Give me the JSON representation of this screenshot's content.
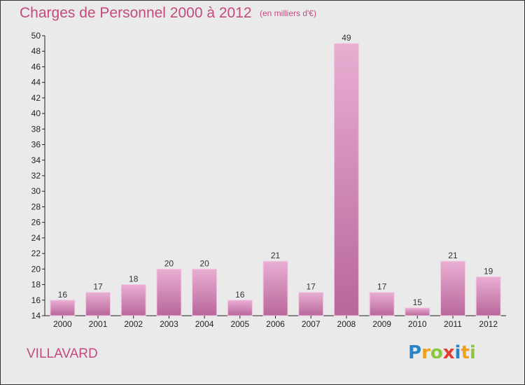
{
  "header": {
    "title": "Charges de Personnel 2000 à 2012",
    "subtitle": "(en milliers d'€)"
  },
  "footer": {
    "place": "VILLAVARD",
    "logo": {
      "letters": [
        "P",
        "r",
        "o",
        "x",
        "i",
        "t",
        "i"
      ],
      "colors": [
        "#2a84c9",
        "#f0a11c",
        "#8cc63f",
        "#e63c2f",
        "#2a84c9",
        "#f0a11c",
        "#8cc63f"
      ]
    }
  },
  "chart_data": {
    "type": "bar",
    "title": "Charges de Personnel 2000 à 2012",
    "subtitle": "(en milliers d'€)",
    "categories": [
      "2000",
      "2001",
      "2002",
      "2003",
      "2004",
      "2005",
      "2006",
      "2007",
      "2008",
      "2009",
      "2010",
      "2011",
      "2012"
    ],
    "values": [
      16,
      17,
      18,
      20,
      20,
      16,
      21,
      17,
      49,
      17,
      15,
      21,
      19
    ],
    "ylim": [
      14,
      50
    ],
    "yticks": [
      14,
      16,
      18,
      20,
      22,
      24,
      26,
      28,
      30,
      32,
      34,
      36,
      38,
      40,
      42,
      44,
      46,
      48,
      50
    ],
    "grid": false,
    "colors": {
      "bar_light": "#e9aed2",
      "bar_dark": "#b8679a",
      "bar_edge": "#f3c8e2"
    }
  }
}
